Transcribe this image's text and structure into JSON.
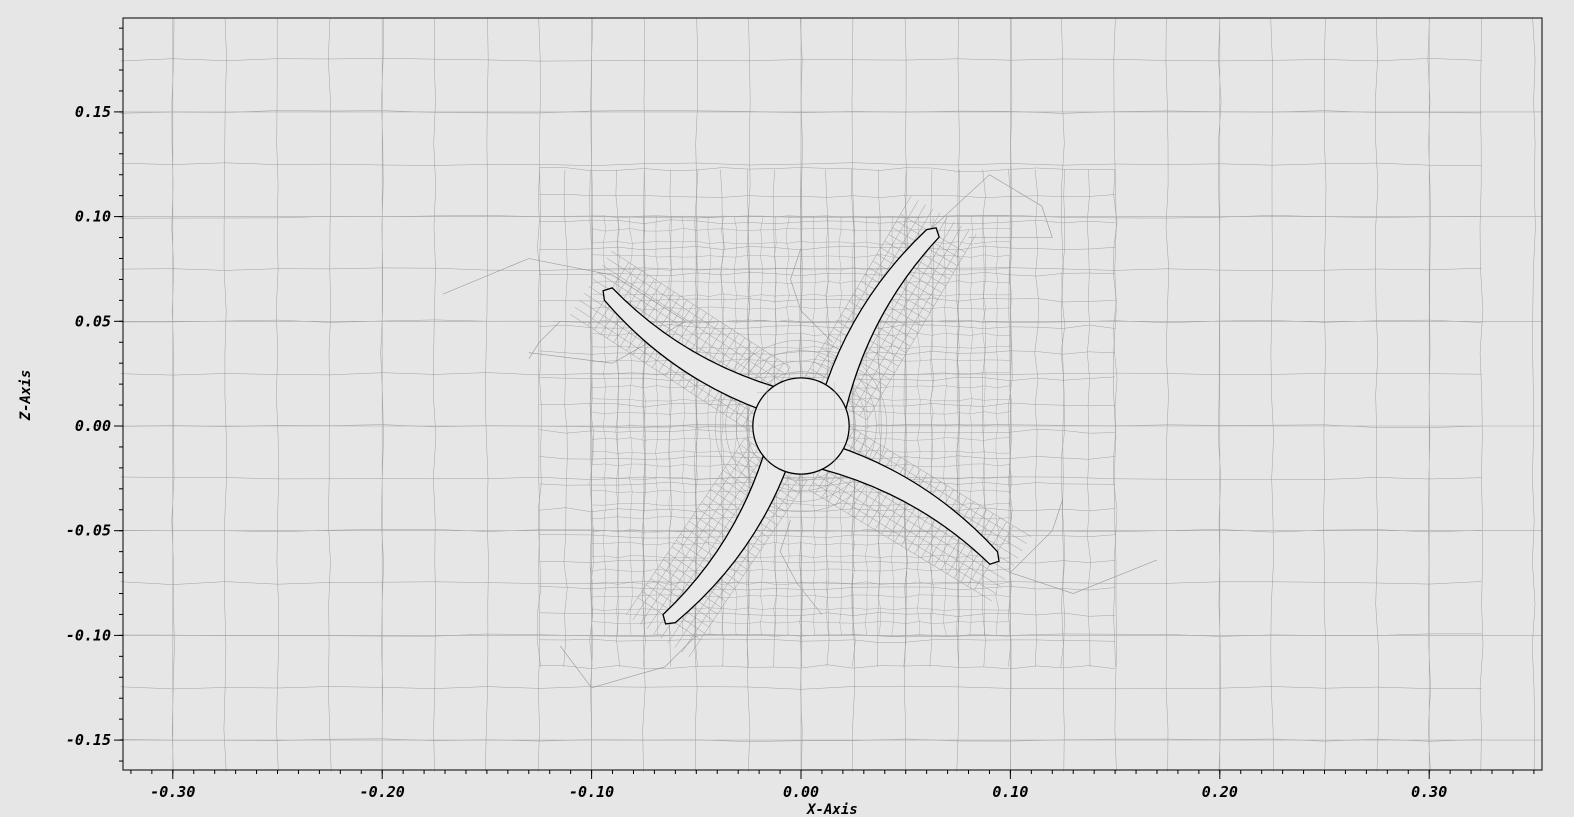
{
  "chart_data": {
    "type": "mesh-plot",
    "xlabel": "X-Axis",
    "ylabel": "Z-Axis",
    "xlim": [
      -0.325,
      0.35
    ],
    "ylim": [
      -0.165,
      0.195
    ],
    "x_ticks": [
      -0.3,
      -0.2,
      -0.1,
      0.0,
      0.1,
      0.2,
      0.3
    ],
    "x_tick_labels": [
      "-0.30",
      "-0.20",
      "-0.10",
      "0.00",
      "0.10",
      "0.20",
      "0.30"
    ],
    "y_ticks": [
      0.15,
      0.1,
      0.05,
      0.0,
      -0.05,
      -0.1,
      -0.15
    ],
    "y_tick_labels": [
      "0.15",
      "0.10",
      "0.05",
      "0.00",
      "-0.05",
      "-0.10",
      "-0.15"
    ],
    "x_minor_step": 0.01,
    "y_minor_step": 0.01,
    "hub": {
      "center": [
        0.0,
        0.0
      ],
      "radius": 0.023
    },
    "blades": [
      {
        "root": [
          0.016,
          0.012
        ],
        "tip": [
          0.063,
          0.092
        ]
      },
      {
        "root": [
          -0.015,
          0.013
        ],
        "tip": [
          -0.092,
          0.063
        ]
      },
      {
        "root": [
          -0.012,
          -0.016
        ],
        "tip": [
          -0.063,
          -0.092
        ]
      },
      {
        "root": [
          0.013,
          -0.015
        ],
        "tip": [
          0.092,
          -0.063
        ]
      }
    ],
    "colors": {
      "background": "#e6e6e6",
      "mesh": "#888888",
      "outline": "#000000",
      "body_fill": "#e9e9e9"
    }
  }
}
